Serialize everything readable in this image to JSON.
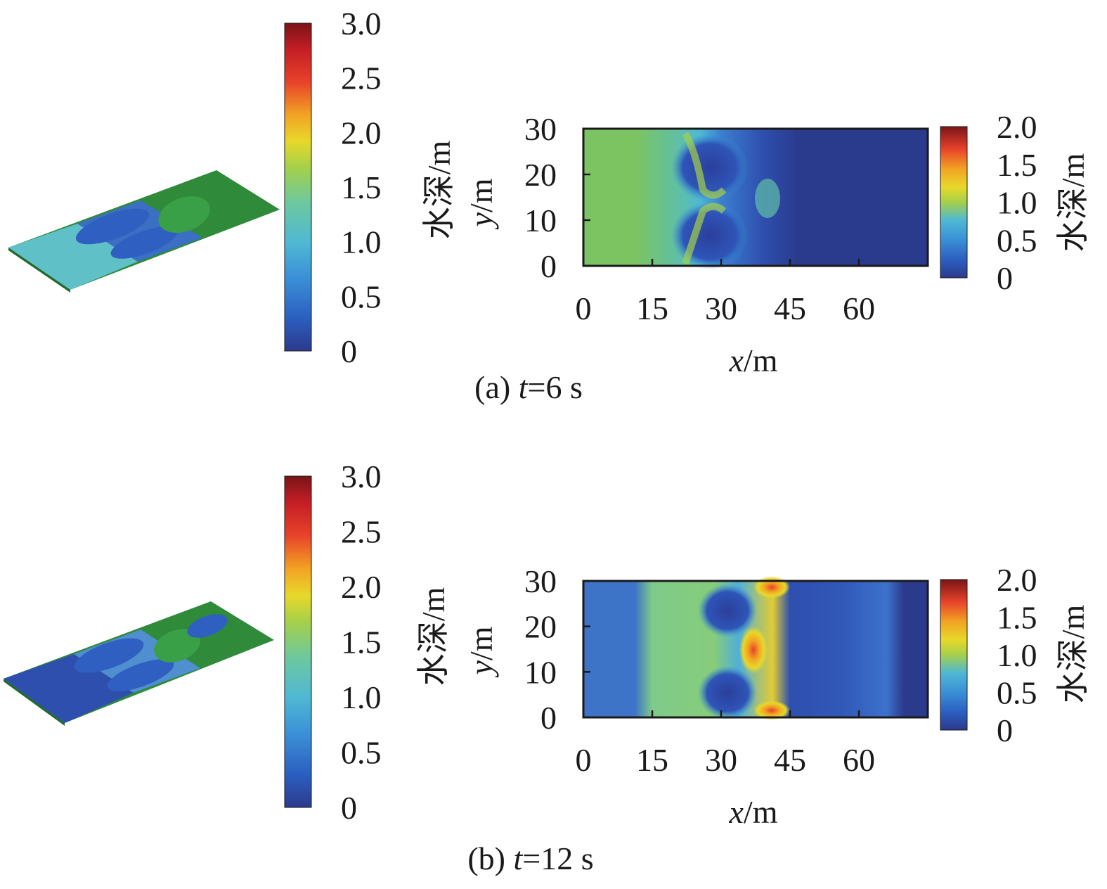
{
  "figure": {
    "panels": [
      {
        "id": "a",
        "caption_prefix": "(a) ",
        "caption_var": "t",
        "caption_rest": "=6 s"
      },
      {
        "id": "b",
        "caption_prefix": "(b) ",
        "caption_var": "t",
        "caption_rest": "=12 s"
      }
    ]
  },
  "colors": {
    "colormap": [
      "#2c3a8c",
      "#2b5fc0",
      "#3a8fd6",
      "#4fb8d4",
      "#6cc8a0",
      "#a5d04a",
      "#e8d82a",
      "#f2a324",
      "#e8432a",
      "#c41e25",
      "#7a1416"
    ],
    "axis": "#1a1a1a",
    "terrain": "#2f8a3a"
  },
  "chart_data": [
    {
      "type": "surface",
      "panel": "a",
      "view": "3d-perspective",
      "colorbar": {
        "ticks": [
          "0",
          "0.5",
          "1.0",
          "1.5",
          "2.0",
          "2.5",
          "3.0"
        ],
        "range": [
          0,
          3.0
        ],
        "label": "水深/m"
      }
    },
    {
      "type": "heatmap",
      "panel": "a",
      "xlabel_var": "x",
      "xlabel_unit": "/m",
      "ylabel_var": "y",
      "ylabel_unit": "/m",
      "xlim": [
        0,
        75
      ],
      "ylim": [
        0,
        30
      ],
      "xticks": [
        "0",
        "15",
        "30",
        "45",
        "60"
      ],
      "yticks": [
        "0",
        "10",
        "20",
        "30"
      ],
      "colorbar": {
        "ticks": [
          "0",
          "0.5",
          "1.0",
          "1.5",
          "2.0"
        ],
        "range": [
          0,
          2.0
        ],
        "label": "水深/m"
      }
    },
    {
      "type": "surface",
      "panel": "b",
      "view": "3d-perspective",
      "colorbar": {
        "ticks": [
          "0",
          "0.5",
          "1.0",
          "1.5",
          "2.0",
          "2.5",
          "3.0"
        ],
        "range": [
          0,
          3.0
        ],
        "label": "水深/m"
      }
    },
    {
      "type": "heatmap",
      "panel": "b",
      "xlabel_var": "x",
      "xlabel_unit": "/m",
      "ylabel_var": "y",
      "ylabel_unit": "/m",
      "xlim": [
        0,
        75
      ],
      "ylim": [
        0,
        30
      ],
      "xticks": [
        "0",
        "15",
        "30",
        "45",
        "60"
      ],
      "yticks": [
        "0",
        "10",
        "20",
        "30"
      ],
      "colorbar": {
        "ticks": [
          "0",
          "0.5",
          "1.0",
          "1.5",
          "2.0"
        ],
        "range": [
          0,
          2.0
        ],
        "label": "水深/m"
      }
    }
  ]
}
